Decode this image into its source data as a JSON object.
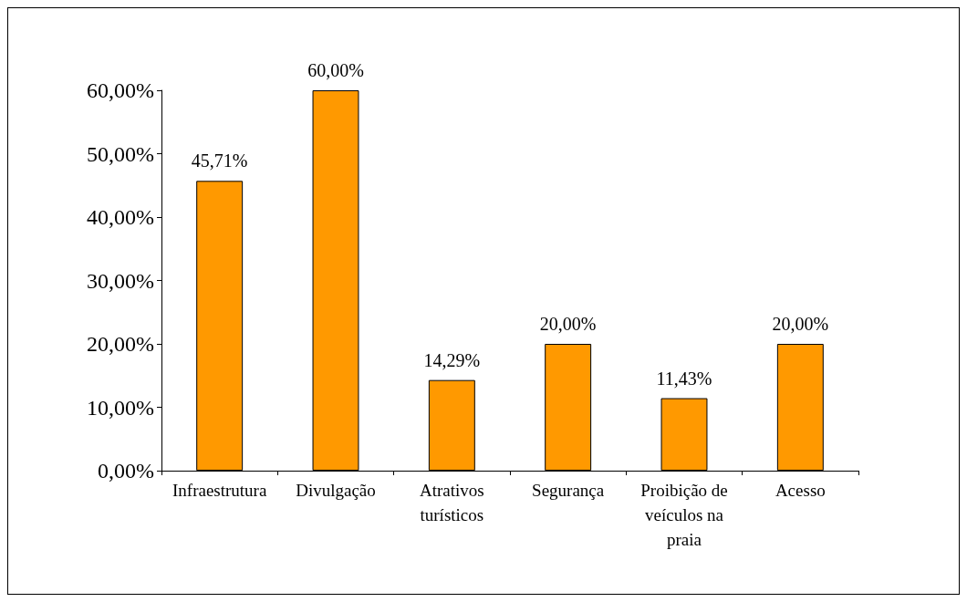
{
  "chart_data": {
    "type": "bar",
    "categories": [
      "Infraestrutura",
      "Divulgação",
      "Atrativos\nturísticos",
      "Segurança",
      "Proibição de\nveículos na\npraia",
      "Acesso"
    ],
    "values": [
      45.71,
      60,
      14.29,
      20,
      11.43,
      20
    ],
    "value_labels": [
      "45,71%",
      "60,00%",
      "14,29%",
      "20,00%",
      "11,43%",
      "20,00%"
    ],
    "color": "#ff9900",
    "ylim": [
      0,
      60
    ],
    "yticks": [
      {
        "value": 0,
        "label": "0,00%"
      },
      {
        "value": 10,
        "label": "10,00%"
      },
      {
        "value": 20,
        "label": "20,00%"
      },
      {
        "value": 30,
        "label": "30,00%"
      },
      {
        "value": 40,
        "label": "40,00%"
      },
      {
        "value": 50,
        "label": "50,00%"
      },
      {
        "value": 60,
        "label": "60,00%"
      }
    ],
    "grid": false
  }
}
